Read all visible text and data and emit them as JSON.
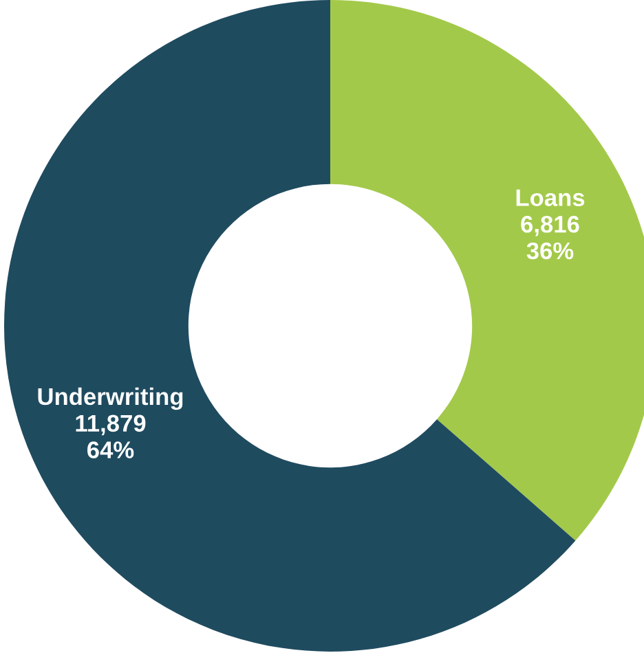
{
  "chart_data": {
    "type": "donut",
    "categories": [
      "Loans",
      "Underwriting"
    ],
    "values": [
      6816,
      11879
    ],
    "colors": [
      "#a3c94a",
      "#1f4b5f"
    ],
    "value_labels": [
      "6,816\n36%",
      "11,879\n64%"
    ],
    "legend": false
  }
}
